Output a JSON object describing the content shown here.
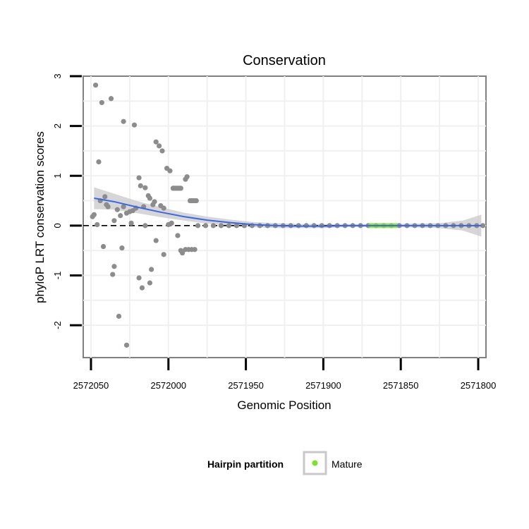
{
  "chart_data": {
    "type": "scatter",
    "title": "Conservation",
    "xlabel": "Genomic Position",
    "ylabel": "phyloP LRT conservation scores",
    "x_reversed": true,
    "xlim": [
      2572055,
      2571795
    ],
    "ylim": [
      -2.65,
      3.0
    ],
    "x_ticks": [
      2572050,
      2572000,
      2571950,
      2571900,
      2571850,
      2571800
    ],
    "x_tick_labels": [
      "2572050",
      "2572000",
      "2571950",
      "2571900",
      "2571850",
      "2571800"
    ],
    "y_ticks": [
      -2,
      -1,
      0,
      1,
      2,
      3
    ],
    "y_tick_labels": [
      "-2",
      "-1",
      "0",
      "1",
      "2",
      "3"
    ],
    "grid": true,
    "reference_line": {
      "y": 0,
      "style": "dashed",
      "color": "#000000"
    },
    "legend": {
      "title": "Hairpin partition",
      "position": "bottom",
      "entries": [
        {
          "label": "Mature",
          "color": "#7fe02a"
        }
      ]
    },
    "colors": {
      "points": "#8c8c8c",
      "mature": "#7fe02a",
      "smooth_line": "#3b66e6",
      "confidence_band": "#c8c8c8"
    },
    "series": [
      {
        "values_note": "",
        "points": [
          [
            2572047,
            2.82
          ],
          [
            2572043,
            2.47
          ],
          [
            2572037,
            2.55
          ],
          [
            2572029,
            2.09
          ],
          [
            2572022,
            2.02
          ],
          [
            2572045,
            1.28
          ],
          [
            2572049,
            0.18
          ],
          [
            2572048,
            0.22
          ],
          [
            2572044,
            0.5
          ],
          [
            2572041,
            0.58
          ],
          [
            2572040,
            0.42
          ],
          [
            2572039,
            0.38
          ],
          [
            2572035,
            0.1
          ],
          [
            2572033,
            0.32
          ],
          [
            2572031,
            0.2
          ],
          [
            2572029,
            0.38
          ],
          [
            2572027,
            0.25
          ],
          [
            2572025,
            0.28
          ],
          [
            2572023,
            0.3
          ],
          [
            2572021,
            0.35
          ],
          [
            2572019,
            0.96
          ],
          [
            2572018,
            0.8
          ],
          [
            2572016,
            0.38
          ],
          [
            2572015,
            0.76
          ],
          [
            2572013,
            0.6
          ],
          [
            2572012,
            0.55
          ],
          [
            2572010,
            0.42
          ],
          [
            2572008,
            1.68
          ],
          [
            2572006,
            1.6
          ],
          [
            2572004,
            1.5
          ],
          [
            2572003,
            0.35
          ],
          [
            2572001,
            1.15
          ],
          [
            2571999,
            1.1
          ],
          [
            2571998,
            0.05
          ],
          [
            2571997,
            0.75
          ],
          [
            2571996,
            0.75
          ],
          [
            2571995,
            0.75
          ],
          [
            2571994,
            0.75
          ],
          [
            2571993,
            0.75
          ],
          [
            2571992,
            0.75
          ],
          [
            2571989,
            0.93
          ],
          [
            2571988,
            0.98
          ],
          [
            2571986,
            0.5
          ],
          [
            2571985,
            0.5
          ],
          [
            2571984,
            0.5
          ],
          [
            2571983,
            0.5
          ],
          [
            2571982,
            0.5
          ],
          [
            2572046,
            0.02
          ],
          [
            2572042,
            -0.42
          ],
          [
            2572036,
            -0.98
          ],
          [
            2572035,
            -0.82
          ],
          [
            2572032,
            -1.82
          ],
          [
            2572030,
            -0.45
          ],
          [
            2572027,
            -2.4
          ],
          [
            2572024,
            0.05
          ],
          [
            2572019,
            -1.05
          ],
          [
            2572017,
            -1.25
          ],
          [
            2572015,
            0.0
          ],
          [
            2572012,
            -1.15
          ],
          [
            2572011,
            -0.88
          ],
          [
            2572009,
            0.48
          ],
          [
            2572008,
            -0.3
          ],
          [
            2572005,
            0.4
          ],
          [
            2572003,
            -0.58
          ],
          [
            2572000,
            0.02
          ],
          [
            2571994,
            -0.2
          ],
          [
            2571992,
            -0.5
          ],
          [
            2571991,
            -0.55
          ],
          [
            2571989,
            -0.48
          ],
          [
            2571987,
            -0.48
          ],
          [
            2571985,
            -0.48
          ],
          [
            2571983,
            -0.48
          ],
          [
            2571981,
            0.0
          ],
          [
            2571976,
            0.0
          ],
          [
            2571971,
            0.0
          ],
          [
            2571966,
            0.0
          ],
          [
            2571961,
            0.0
          ],
          [
            2571956,
            0.0
          ],
          [
            2571951,
            0.0
          ],
          [
            2571946,
            0.0
          ],
          [
            2571941,
            0.0
          ],
          [
            2571936,
            0.0
          ],
          [
            2571931,
            0.0
          ],
          [
            2571926,
            0.0
          ],
          [
            2571921,
            0.0
          ],
          [
            2571916,
            0.0
          ],
          [
            2571911,
            0.0
          ],
          [
            2571906,
            0.0
          ],
          [
            2571901,
            0.0
          ],
          [
            2571896,
            0.0
          ],
          [
            2571891,
            0.0
          ],
          [
            2571886,
            0.0
          ],
          [
            2571881,
            0.0
          ],
          [
            2571876,
            0.0
          ],
          [
            2571871,
            0.0
          ],
          [
            2571866,
            0.0
          ],
          [
            2571861,
            0.0
          ],
          [
            2571856,
            0.0
          ],
          [
            2571851,
            0.0
          ],
          [
            2571846,
            0.0
          ],
          [
            2571841,
            0.0
          ],
          [
            2571836,
            0.0
          ],
          [
            2571831,
            0.0
          ],
          [
            2571826,
            0.0
          ],
          [
            2571821,
            0.0
          ],
          [
            2571816,
            0.0
          ],
          [
            2571811,
            0.0
          ],
          [
            2571806,
            0.0
          ],
          [
            2571801,
            0.0
          ],
          [
            2571797,
            0.0
          ]
        ],
        "mature_range": [
          2571871,
          2571852
        ]
      }
    ],
    "smooth": {
      "x": [
        2572048,
        2572035,
        2572020,
        2572005,
        2571990,
        2571975,
        2571960,
        2571945,
        2571930,
        2571915,
        2571900,
        2571885,
        2571870,
        2571855,
        2571840,
        2571825,
        2571810,
        2571798
      ],
      "y": [
        0.55,
        0.48,
        0.37,
        0.27,
        0.18,
        0.11,
        0.06,
        0.02,
        0.0,
        -0.01,
        -0.01,
        0.0,
        0.0,
        0.0,
        0.0,
        0.0,
        0.0,
        0.0
      ],
      "band_half_width": [
        0.22,
        0.16,
        0.12,
        0.1,
        0.08,
        0.07,
        0.06,
        0.05,
        0.05,
        0.04,
        0.04,
        0.03,
        0.03,
        0.03,
        0.04,
        0.05,
        0.1,
        0.22
      ]
    }
  }
}
